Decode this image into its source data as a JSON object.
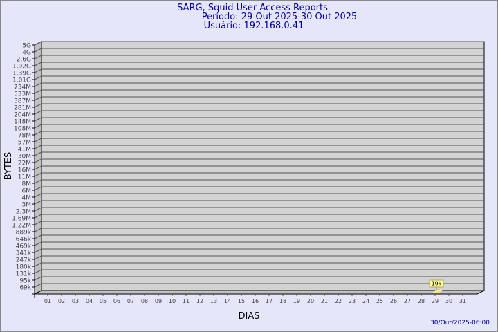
{
  "header": {
    "title": "SARG, Squid User Access Reports",
    "period": "Período: 29 Out 2025-30 Out 2025",
    "user": "Usuário: 192.168.0.41"
  },
  "footer": {
    "timestamp": "30/Out/2025-06:00"
  },
  "colors": {
    "background": "#e6e6fa",
    "title": "#000099",
    "plot": "#d3d3d3",
    "bar": "#ffe680",
    "label_box": "#ffff99"
  },
  "chart_data": {
    "type": "bar",
    "xlabel": "DIAS",
    "ylabel": "BYTES",
    "y_scale": "log",
    "grid": true,
    "y_ticks": [
      "5G",
      "4G",
      "2,6G",
      "1,92G",
      "1,39G",
      "1,01G",
      "734M",
      "533M",
      "387M",
      "281M",
      "204M",
      "148M",
      "108M",
      "78M",
      "57M",
      "41M",
      "30M",
      "22M",
      "16M",
      "11M",
      "8M",
      "6M",
      "4M",
      "3M",
      "2,3M",
      "1,69M",
      "1,22M",
      "889k",
      "646k",
      "469k",
      "341k",
      "247k",
      "180k",
      "131k",
      "95k",
      "69k"
    ],
    "categories": [
      "01",
      "02",
      "03",
      "04",
      "05",
      "06",
      "07",
      "08",
      "09",
      "10",
      "11",
      "12",
      "13",
      "14",
      "15",
      "16",
      "17",
      "18",
      "19",
      "20",
      "21",
      "22",
      "23",
      "24",
      "25",
      "26",
      "27",
      "28",
      "29",
      "30",
      "31"
    ],
    "values": [
      {
        "day": "29",
        "bytes": 19000,
        "label": "19k"
      }
    ]
  }
}
